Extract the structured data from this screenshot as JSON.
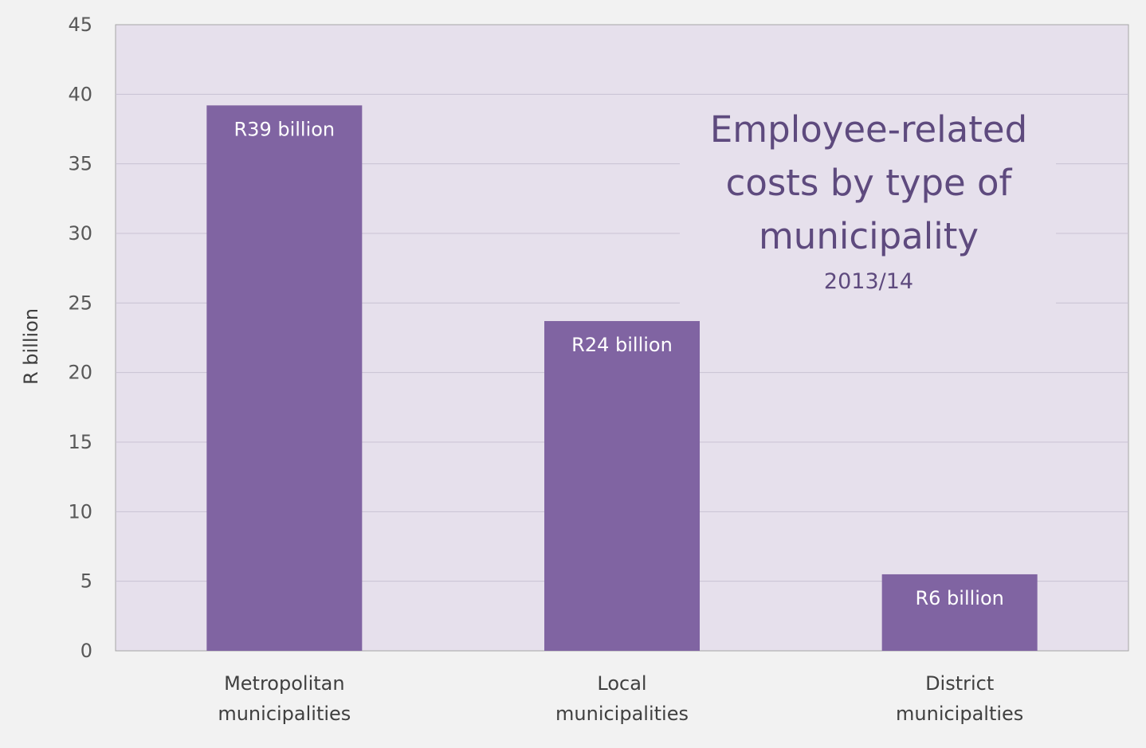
{
  "chart_data": {
    "type": "bar",
    "title": "Employee-related costs by type of municipality",
    "title_lines": [
      "Employee-related",
      "costs by type of",
      "municipality"
    ],
    "subtitle": "2013/14",
    "ylabel": "R billion",
    "xlabel": "",
    "ylim": [
      0,
      45
    ],
    "yticks": [
      0,
      5,
      10,
      15,
      20,
      25,
      30,
      35,
      40,
      45
    ],
    "grid": true,
    "categories": [
      [
        "Metropolitan",
        "municipalities"
      ],
      [
        "Local",
        "municipalities"
      ],
      [
        "District",
        "municipalties"
      ]
    ],
    "values": [
      39.2,
      23.7,
      5.5
    ],
    "data_labels": [
      "R39  billion",
      "R24  billion",
      "R6  billion"
    ],
    "colors": {
      "bar": "#8064a2",
      "plot_bg": "#e6e0ec",
      "page_bg": "#f2f2f2",
      "grid": "#c9c2d3",
      "title": "#5e4a7e"
    }
  }
}
